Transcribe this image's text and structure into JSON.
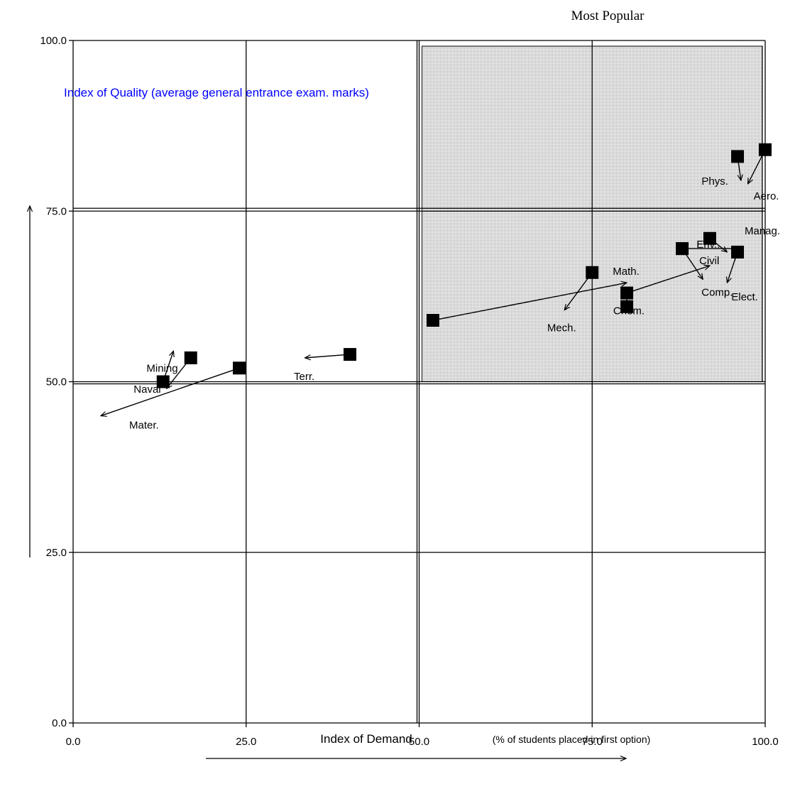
{
  "chart_data": {
    "type": "scatter",
    "title": "Most Popular",
    "xlabel": "Index of Demand",
    "xlabel_note": "(% of students placed in first option)",
    "ylabel": "Index of Quality (average general entrance exam. marks)",
    "xlim": [
      0,
      100
    ],
    "ylim": [
      0,
      100
    ],
    "x_ticks": [
      "0.0",
      "25.0",
      "50.0",
      "75.0",
      "100.0"
    ],
    "y_ticks": [
      "0.0",
      "25.0",
      "50.0",
      "75.0",
      "100.0"
    ],
    "grid": true,
    "highlight_region": {
      "x": [
        50,
        100
      ],
      "y": [
        50,
        100
      ],
      "label": "Most Popular"
    },
    "colors": {
      "ylabel": "#0000ff",
      "marker": "#000000",
      "shade": "#d9d9d9"
    },
    "series": [
      {
        "label": "Aero.",
        "from": [
          100,
          84
        ],
        "to": [
          97.5,
          79
        ]
      },
      {
        "label": "Phys.",
        "from": [
          96,
          83
        ],
        "to": [
          96.5,
          79.5
        ]
      },
      {
        "label": "Manag.",
        "from": [
          88,
          69.5
        ],
        "to": [
          96,
          69.5
        ]
      },
      {
        "label": "Env..",
        "from": [
          92,
          71
        ],
        "to": [
          94.5,
          69
        ]
      },
      {
        "label": "Elect.",
        "from": [
          96,
          69
        ],
        "to": [
          94.5,
          64.5
        ]
      },
      {
        "label": "Comp.",
        "from": [
          88,
          69.5
        ],
        "to": [
          91,
          65
        ]
      },
      {
        "label": "Civil",
        "from": [
          80,
          63
        ],
        "to": [
          92,
          67
        ]
      },
      {
        "label": "Math.",
        "from": [
          52,
          59
        ],
        "to": [
          80,
          64.5
        ]
      },
      {
        "label": "Chem.",
        "from": [
          80,
          61
        ],
        "to": [
          80,
          63
        ]
      },
      {
        "label": "Mech.",
        "from": [
          75,
          66
        ],
        "to": [
          71,
          60.5
        ]
      },
      {
        "label": "Terr.",
        "from": [
          40,
          54
        ],
        "to": [
          33.5,
          53.5
        ]
      },
      {
        "label": "Mater.",
        "from": [
          24,
          52
        ],
        "to": [
          4,
          45
        ]
      },
      {
        "label": "Naval",
        "from": [
          17,
          53.5
        ],
        "to": [
          13.5,
          49
        ]
      },
      {
        "label": "Mining",
        "from": [
          13,
          50
        ],
        "to": [
          14.5,
          54.5
        ]
      }
    ]
  }
}
